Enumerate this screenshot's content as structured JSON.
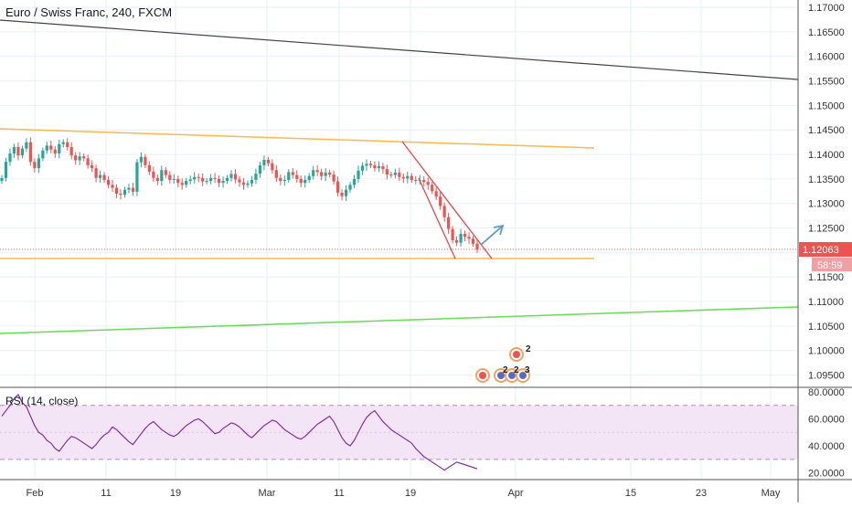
{
  "chart_data": {
    "type": "candlestick",
    "title": "Euro / Swiss Franc, 240, FXCM",
    "xlabel": "",
    "ylabel": "",
    "grid": true,
    "x_ticks": [
      "Feb",
      "11",
      "19",
      "Mar",
      "11",
      "19",
      "Apr",
      "15",
      "23",
      "May"
    ],
    "y_ticks": [
      "1.17000",
      "1.16500",
      "1.16000",
      "1.15500",
      "1.15000",
      "1.14500",
      "1.14000",
      "1.13500",
      "1.13000",
      "1.12500",
      "1.12000",
      "1.11500",
      "1.11000",
      "1.10500",
      "1.10000",
      "1.09500"
    ],
    "ylim": [
      1.0925,
      1.1715
    ],
    "last_price": "1.12063",
    "countdown": "58:59",
    "price_series": [
      1.1352,
      1.1385,
      1.1402,
      1.1415,
      1.1398,
      1.1412,
      1.1425,
      1.1385,
      1.1372,
      1.1392,
      1.1408,
      1.1418,
      1.141,
      1.1402,
      1.1421,
      1.1425,
      1.1415,
      1.1398,
      1.1388,
      1.1396,
      1.1392,
      1.1378,
      1.1372,
      1.1352,
      1.1358,
      1.1348,
      1.1338,
      1.1332,
      1.132,
      1.1318,
      1.1328,
      1.1332,
      1.1324,
      1.1384,
      1.1395,
      1.1378,
      1.1365,
      1.1352,
      1.1346,
      1.1368,
      1.1358,
      1.1348,
      1.135,
      1.1342,
      1.1338,
      1.1346,
      1.1349,
      1.1354,
      1.1352,
      1.1345,
      1.1346,
      1.1352,
      1.135,
      1.1342,
      1.1346,
      1.1352,
      1.136,
      1.1349,
      1.1343,
      1.1338,
      1.1341,
      1.1348,
      1.1361,
      1.1378,
      1.1389,
      1.1382,
      1.1368,
      1.1352,
      1.1346,
      1.1348,
      1.1364,
      1.1358,
      1.135,
      1.1342,
      1.1348,
      1.1356,
      1.1368,
      1.1364,
      1.1356,
      1.1363,
      1.1359,
      1.1345,
      1.1322,
      1.1315,
      1.1328,
      1.1338,
      1.135,
      1.1367,
      1.1377,
      1.1381,
      1.1378,
      1.1372,
      1.1376,
      1.137,
      1.1359,
      1.1358,
      1.1363,
      1.1354,
      1.1351,
      1.1356,
      1.1348,
      1.1346,
      1.1348,
      1.1344,
      1.1338,
      1.1325,
      1.1314,
      1.1295,
      1.1272,
      1.1248,
      1.1225,
      1.122,
      1.1238,
      1.1232,
      1.1228,
      1.1218,
      1.1206
    ],
    "series": [
      {
        "name": "RSI (14, close)",
        "values": [
          62,
          66,
          70,
          75,
          78,
          72,
          69,
          62,
          55,
          50,
          48,
          44,
          42,
          38,
          36,
          40,
          44,
          47,
          46,
          44,
          42,
          40,
          38,
          41,
          45,
          48,
          50,
          54,
          52,
          49,
          46,
          43,
          41,
          45,
          49,
          53,
          56,
          58,
          55,
          52,
          50,
          48,
          47,
          49,
          52,
          55,
          57,
          59,
          60,
          58,
          55,
          52,
          49,
          50,
          53,
          55,
          57,
          56,
          54,
          51,
          48,
          46,
          49,
          52,
          55,
          57,
          59,
          58,
          55,
          52,
          50,
          48,
          46,
          45,
          47,
          50,
          53,
          56,
          58,
          60,
          62,
          58,
          52,
          46,
          42,
          40,
          44,
          50,
          56,
          61,
          64,
          66,
          62,
          58,
          55,
          52,
          50,
          48,
          46,
          44,
          42,
          38,
          35,
          32,
          30,
          28,
          26,
          24,
          22,
          24,
          26,
          28,
          27,
          26,
          25,
          24,
          23
        ]
      }
    ],
    "rsi_ylim": [
      15,
      82
    ],
    "rsi_ticks": [
      "80.0000",
      "60.0000",
      "40.0000",
      "20.0000"
    ],
    "rsi_band": [
      30,
      70
    ],
    "event_badges": [
      "2",
      "2",
      "2",
      "3"
    ]
  },
  "colors": {
    "up": "#26a69a",
    "down": "#ef5350",
    "grid": "#e6f0f5",
    "orange": "#ffb74d",
    "green": "#66dd55",
    "black_line": "#444444",
    "red_channel": "#e8474a",
    "arrow": "#5b9bd5",
    "rsi_line": "#7b1fa2",
    "rsi_band": "#f3e5f5",
    "price_label_bg": "#ef5350",
    "countdown_bg": "#f0a0a0"
  }
}
